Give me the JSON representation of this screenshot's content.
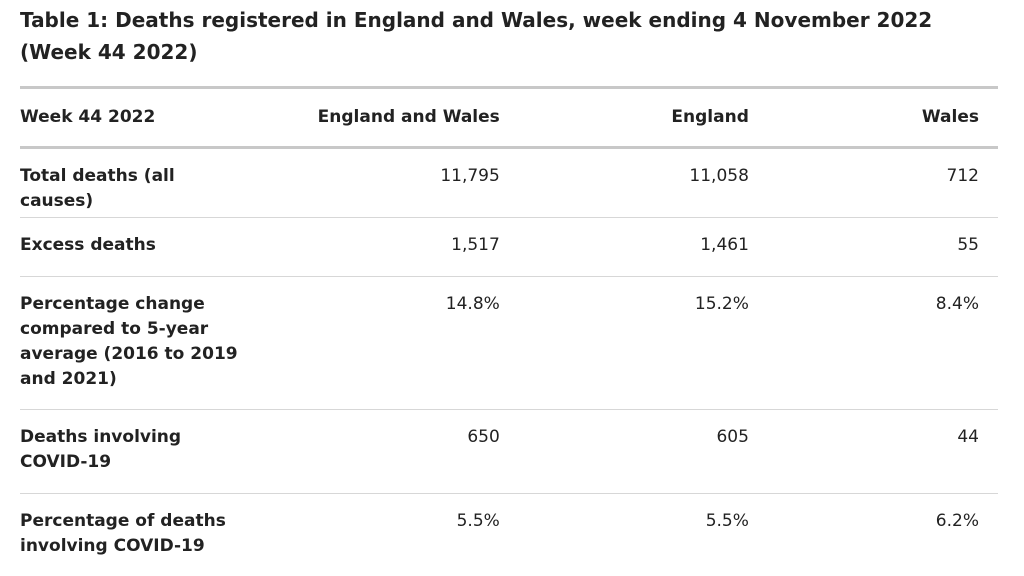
{
  "table": {
    "title": "Table 1: Deaths registered in England and Wales, week ending 4 November 2022 (Week 44 2022)",
    "headers": [
      "Week 44 2022",
      "England and Wales",
      "England",
      "Wales"
    ],
    "rows": [
      {
        "label": "Total deaths (all causes)",
        "values": [
          "11,795",
          "11,058",
          "712"
        ]
      },
      {
        "label": "Excess deaths",
        "values": [
          "1,517",
          "1,461",
          "55"
        ]
      },
      {
        "label": "Percentage change compared to 5-year average (2016 to 2019 and 2021)",
        "values": [
          "14.8%",
          "15.2%",
          "8.4%"
        ]
      },
      {
        "label": "Deaths involving COVID-19",
        "values": [
          "650",
          "605",
          "44"
        ]
      },
      {
        "label": "Percentage of deaths involving COVID-19",
        "values": [
          "5.5%",
          "5.5%",
          "6.2%"
        ]
      }
    ]
  },
  "colors": {
    "text": "#222222",
    "rule_heavy": "#c8c8c8",
    "rule_light": "#d7d7d7"
  }
}
